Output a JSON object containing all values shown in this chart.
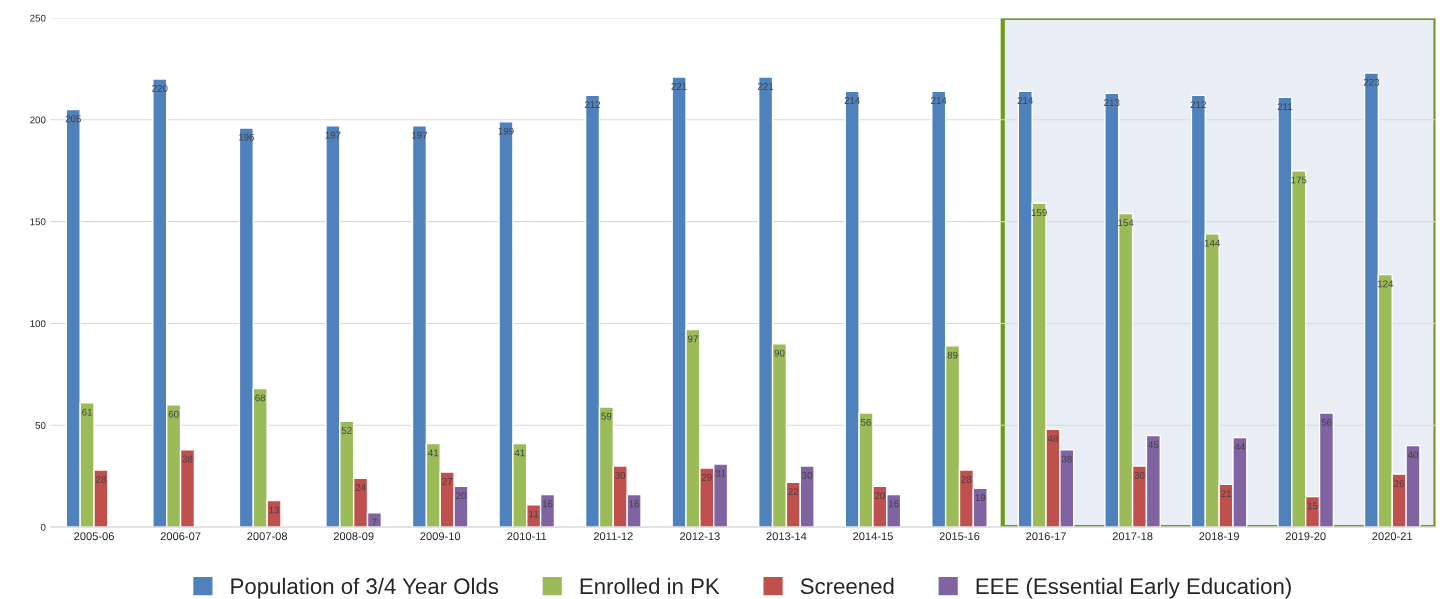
{
  "chart_data": {
    "type": "bar",
    "categories": [
      "2005-06",
      "2006-07",
      "2007-08",
      "2008-09",
      "2009-10",
      "2010-11",
      "2011-12",
      "2012-13",
      "2013-14",
      "2014-15",
      "2015-16",
      "2016-17",
      "2017-18",
      "2018-19",
      "2019-20",
      "2020-21"
    ],
    "series": [
      {
        "name": "Population of 3/4 Year Olds",
        "color": "#4f81bd",
        "values": [
          205,
          220,
          196,
          197,
          197,
          199,
          212,
          221,
          221,
          214,
          214,
          214,
          213,
          212,
          211,
          223
        ]
      },
      {
        "name": "Enrolled in PK",
        "color": "#9bbb59",
        "values": [
          61,
          60,
          68,
          52,
          41,
          41,
          59,
          97,
          90,
          56,
          89,
          159,
          154,
          144,
          175,
          124
        ]
      },
      {
        "name": "Screened",
        "color": "#c0504d",
        "values": [
          28,
          38,
          13,
          24,
          27,
          11,
          30,
          29,
          22,
          20,
          28,
          48,
          30,
          21,
          15,
          26
        ]
      },
      {
        "name": "EEE (Essential Early Education)",
        "color": "#8064a2",
        "values": [
          null,
          null,
          null,
          7,
          20,
          16,
          16,
          31,
          30,
          16,
          19,
          38,
          45,
          44,
          56,
          40
        ]
      }
    ],
    "ylim": [
      0,
      250
    ],
    "yticks": [
      0,
      50,
      100,
      150,
      200,
      250
    ],
    "grid": "y",
    "legend": "bottom",
    "data_labels": true,
    "bands": [
      {
        "axis": "x",
        "from": "2016-17",
        "to": "2020-21",
        "color": "#e9eef6"
      }
    ]
  }
}
